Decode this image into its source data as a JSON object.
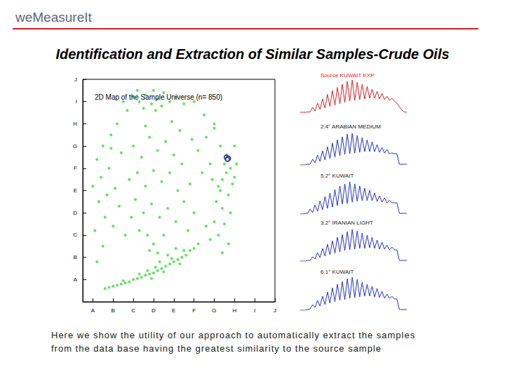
{
  "header": {
    "logo": "weMeasureIt"
  },
  "title": "Identification and Extraction of Similar Samples-Crude Oils",
  "caption": [
    "Here we show the utility of our approach to automatically extract the samples",
    "from the data base having the greatest similarity to the source sample"
  ],
  "chart_data": [
    {
      "type": "scatter",
      "title": "2D Map of the Sample Universe (n= 850)",
      "xlim": [
        0.5,
        10
      ],
      "ylim": [
        0,
        10
      ],
      "grid": false,
      "xticks": [
        {
          "value": 1,
          "label": "A"
        },
        {
          "value": 2,
          "label": "B"
        },
        {
          "value": 3,
          "label": "C"
        },
        {
          "value": 4,
          "label": "D"
        },
        {
          "value": 5,
          "label": "E"
        },
        {
          "value": 6,
          "label": "F"
        },
        {
          "value": 7,
          "label": "G"
        },
        {
          "value": 8,
          "label": "H"
        },
        {
          "value": 9,
          "label": "I"
        },
        {
          "value": 10,
          "label": "J"
        }
      ],
      "yticks": [
        {
          "value": 1,
          "label": "A"
        },
        {
          "value": 2,
          "label": "B"
        },
        {
          "value": 3,
          "label": "C"
        },
        {
          "value": 4,
          "label": "D"
        },
        {
          "value": 5,
          "label": "E"
        },
        {
          "value": 6,
          "label": "F"
        },
        {
          "value": 7,
          "label": "G"
        },
        {
          "value": 8,
          "label": "H"
        },
        {
          "value": 9,
          "label": "I"
        },
        {
          "value": 10,
          "label": "J"
        }
      ],
      "series": [
        {
          "color": "#33dd33",
          "marker": "circle",
          "x": [
            1.6,
            1.8,
            2.0,
            2.2,
            2.4,
            2.6,
            2.8,
            3.0,
            3.2,
            3.4,
            3.6,
            3.8,
            4.0,
            4.2,
            4.4,
            4.6,
            4.8,
            5.0,
            5.2,
            5.4,
            5.6,
            5.8,
            6.0,
            6.2,
            2.5,
            3.3,
            4.1,
            4.9,
            5.5,
            3.9,
            4.5,
            5.3,
            3.7,
            4.3,
            4.7,
            5.1,
            4.2,
            4.0,
            3.8,
            1.2,
            1.5,
            1.1,
            1.6,
            1.3,
            1.0,
            1.4,
            1.8,
            1.2,
            1.5,
            1.9,
            2.2,
            1.7,
            2.1,
            2.3,
            2.0,
            2.6,
            2.4,
            2.8,
            1.9,
            3.0,
            3.3,
            3.6,
            3.9,
            4.2,
            4.5,
            4.8,
            3.5,
            4.0,
            4.4,
            2.7,
            5.1,
            3.2,
            4.1,
            5.5,
            6.0,
            6.5,
            7.0,
            2.5,
            3.0,
            3.4,
            3.8,
            4.2,
            4.6,
            5.0,
            3.2,
            3.6,
            4.0,
            4.4,
            4.8,
            5.2,
            3.1,
            3.5,
            3.9,
            4.3,
            4.7,
            5.1,
            5.5,
            5.8,
            5.4,
            5.9,
            6.2,
            6.4,
            6.0,
            5.7,
            3.3,
            2.9,
            3.7,
            4.5,
            5.3,
            4.9,
            3.6,
            6.6,
            7.2,
            7.4,
            7.6,
            7.8,
            8.0,
            7.5,
            7.3,
            7.7,
            7.9,
            8.1,
            7.1,
            7.4,
            7.8,
            7.0,
            7.5,
            7.2,
            6.8,
            7.6,
            7.3,
            8.0,
            7.0,
            6.8,
            6.9,
            7.7,
            7.4,
            6.6
          ],
          "values": [
            0.6,
            0.65,
            0.7,
            0.75,
            0.8,
            0.85,
            0.9,
            1.0,
            1.05,
            1.1,
            1.2,
            1.25,
            1.3,
            1.4,
            1.5,
            1.6,
            1.7,
            1.8,
            1.9,
            2.0,
            2.1,
            2.3,
            2.4,
            2.6,
            0.95,
            1.25,
            1.55,
            1.95,
            2.3,
            1.05,
            1.35,
            1.7,
            1.4,
            1.8,
            2.1,
            2.4,
            2.2,
            2.6,
            2.3,
            1.8,
            2.5,
            3.2,
            3.8,
            4.5,
            5.2,
            5.6,
            6.0,
            6.4,
            7.0,
            7.5,
            8.0,
            4.8,
            5.1,
            4.3,
            3.4,
            3.0,
            6.7,
            5.5,
            6.9,
            9.2,
            9.0,
            9.3,
            8.9,
            9.1,
            9.4,
            9.0,
            8.7,
            9.5,
            8.8,
            8.6,
            9.2,
            9.5,
            8.6,
            8.9,
            9.0,
            8.4,
            8.0,
            9.0,
            7.0,
            6.5,
            7.4,
            6.8,
            7.2,
            6.6,
            5.8,
            5.2,
            5.9,
            5.4,
            5.8,
            5.0,
            4.6,
            4.0,
            4.4,
            3.8,
            4.2,
            3.6,
            4.5,
            5.3,
            6.2,
            7.3,
            6.8,
            5.8,
            4.0,
            3.2,
            3.2,
            3.8,
            3.0,
            3.0,
            7.7,
            8.1,
            7.9,
            7.4,
            5.2,
            5.5,
            5.8,
            6.0,
            5.6,
            6.2,
            5.0,
            4.8,
            5.3,
            6.2,
            4.5,
            4.2,
            4.0,
            3.6,
            3.5,
            3.0,
            2.8,
            6.6,
            7.0,
            7.0,
            7.8,
            6.2,
            5.5,
            2.6,
            2.2,
            3.4
          ]
        },
        {
          "color": "#1a1a80",
          "marker": "emptyCircle",
          "x": [
            7.6,
            7.7,
            7.65
          ],
          "values": [
            6.5,
            6.45,
            6.4
          ]
        }
      ]
    },
    {
      "type": "line",
      "title": "Source KUWAIT EXP",
      "color": "#dd2222",
      "tick_labels": false,
      "xlim": [
        0,
        43
      ],
      "ylim": [
        0,
        100
      ],
      "x": [
        0,
        1,
        2,
        3,
        4,
        5,
        6,
        7,
        8,
        9,
        10,
        11,
        12,
        13,
        14,
        15,
        16,
        17,
        18,
        19,
        20,
        21,
        22,
        23,
        24,
        25,
        26,
        27,
        28,
        29,
        30,
        31,
        32,
        33,
        34,
        35,
        36,
        37,
        38,
        39,
        40,
        41,
        42,
        43
      ],
      "values": [
        4,
        4,
        4,
        5,
        5,
        18,
        8,
        30,
        12,
        42,
        16,
        55,
        20,
        66,
        24,
        75,
        28,
        84,
        32,
        92,
        36,
        96,
        38,
        90,
        40,
        84,
        42,
        78,
        44,
        70,
        44,
        64,
        42,
        58,
        40,
        50,
        38,
        44,
        36,
        30,
        20,
        10,
        5,
        4
      ]
    },
    {
      "type": "line",
      "title": "2.4° ARABIAN MEDIUM",
      "color": "#2233cc",
      "tick_labels": false,
      "xlim": [
        0,
        43
      ],
      "ylim": [
        0,
        100
      ],
      "x": [
        0,
        1,
        2,
        3,
        4,
        5,
        6,
        7,
        8,
        9,
        10,
        11,
        12,
        13,
        14,
        15,
        16,
        17,
        18,
        19,
        20,
        21,
        22,
        23,
        24,
        25,
        26,
        27,
        28,
        29,
        30,
        31,
        32,
        33,
        34,
        35,
        36,
        37,
        38,
        39,
        40,
        41,
        42,
        43
      ],
      "values": [
        0,
        0,
        0,
        2,
        2,
        16,
        6,
        28,
        10,
        40,
        14,
        52,
        18,
        62,
        22,
        72,
        26,
        80,
        30,
        88,
        32,
        90,
        34,
        84,
        36,
        78,
        38,
        72,
        38,
        66,
        38,
        58,
        36,
        50,
        34,
        44,
        32,
        34,
        32,
        32,
        2,
        2,
        2,
        2
      ]
    },
    {
      "type": "line",
      "title": "5.2° KUWAIT",
      "color": "#2233cc",
      "tick_labels": false,
      "xlim": [
        0,
        43
      ],
      "ylim": [
        0,
        100
      ],
      "x": [
        0,
        1,
        2,
        3,
        4,
        5,
        6,
        7,
        8,
        9,
        10,
        11,
        12,
        13,
        14,
        15,
        16,
        17,
        18,
        19,
        20,
        21,
        22,
        23,
        24,
        25,
        26,
        27,
        28,
        29,
        30,
        31,
        32,
        33,
        34,
        35,
        36,
        37,
        38,
        39,
        40,
        41,
        42,
        43
      ],
      "values": [
        0,
        0,
        2,
        2,
        14,
        4,
        26,
        8,
        38,
        12,
        50,
        16,
        60,
        20,
        70,
        24,
        80,
        28,
        86,
        30,
        92,
        34,
        86,
        36,
        80,
        38,
        74,
        38,
        68,
        38,
        60,
        36,
        52,
        34,
        46,
        32,
        40,
        32,
        32,
        32,
        2,
        2,
        2,
        2
      ]
    },
    {
      "type": "line",
      "title": "3.2° IRANIAN LIGHT",
      "color": "#2233cc",
      "tick_labels": false,
      "xlim": [
        0,
        43
      ],
      "ylim": [
        0,
        100
      ],
      "x": [
        0,
        1,
        2,
        3,
        4,
        5,
        6,
        7,
        8,
        9,
        10,
        11,
        12,
        13,
        14,
        15,
        16,
        17,
        18,
        19,
        20,
        21,
        22,
        23,
        24,
        25,
        26,
        27,
        28,
        29,
        30,
        31,
        32,
        33,
        34,
        35,
        36,
        37,
        38,
        39,
        40,
        41,
        42,
        43
      ],
      "values": [
        0,
        0,
        0,
        2,
        2,
        12,
        6,
        24,
        10,
        36,
        14,
        48,
        18,
        58,
        22,
        68,
        26,
        76,
        30,
        84,
        32,
        90,
        34,
        86,
        36,
        80,
        36,
        74,
        38,
        68,
        36,
        60,
        34,
        54,
        34,
        46,
        32,
        40,
        32,
        32,
        2,
        2,
        2,
        2
      ]
    },
    {
      "type": "line",
      "title": "6.1° KUWAIT",
      "color": "#2233cc",
      "tick_labels": false,
      "xlim": [
        0,
        43
      ],
      "ylim": [
        0,
        100
      ],
      "x": [
        0,
        1,
        2,
        3,
        4,
        5,
        6,
        7,
        8,
        9,
        10,
        11,
        12,
        13,
        14,
        15,
        16,
        17,
        18,
        19,
        20,
        21,
        22,
        23,
        24,
        25,
        26,
        27,
        28,
        29,
        30,
        31,
        32,
        33,
        34,
        35,
        36,
        37,
        38,
        39,
        40,
        41,
        42,
        43
      ],
      "values": [
        0,
        0,
        0,
        2,
        4,
        16,
        8,
        28,
        12,
        40,
        16,
        52,
        20,
        64,
        24,
        74,
        28,
        82,
        30,
        90,
        34,
        94,
        36,
        88,
        38,
        80,
        40,
        74,
        40,
        68,
        38,
        62,
        36,
        54,
        34,
        46,
        34,
        40,
        32,
        32,
        2,
        2,
        2,
        2
      ]
    }
  ]
}
